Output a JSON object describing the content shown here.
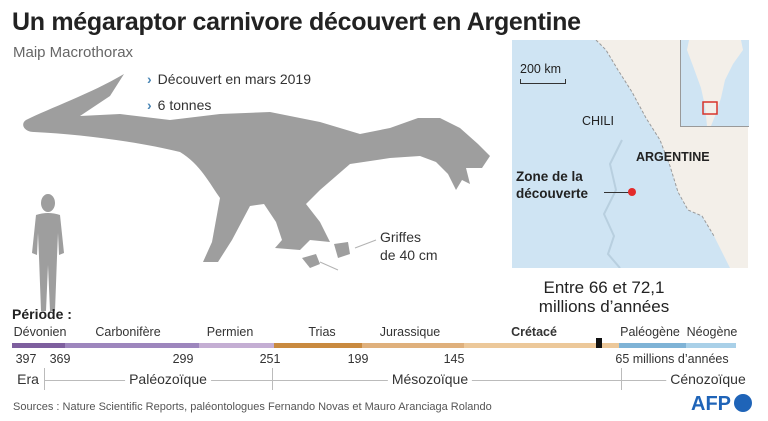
{
  "title": "Un mégaraptor carnivore découvert en Argentine",
  "subtitle": "Maip Macrothorax",
  "facts": [
    "Découvert en mars 2019",
    "6 tonnes"
  ],
  "claw_label": [
    "Griffes",
    "de 40 cm"
  ],
  "timespan": [
    "Entre 66 et 72,1",
    "millions d’années"
  ],
  "map": {
    "scale": "200 km",
    "chile": "CHILI",
    "argentina": "ARGENTINE",
    "zone": [
      "Zone de la",
      "découverte"
    ]
  },
  "timeline": {
    "label": "Période :",
    "periods": [
      "Dévonien",
      "Carbonifère",
      "Permien",
      "Trias",
      "Jurassique",
      "Crétacé",
      "Paléogène",
      "Néogène"
    ],
    "numbers": [
      "397",
      "369",
      "299",
      "251",
      "199",
      "145",
      "65 millions d’années"
    ],
    "eras": [
      "Era",
      "Paléozoïque",
      "Mésozoïque",
      "Cénozoïque"
    ],
    "colors": [
      "#7e5f9e",
      "#9d86bd",
      "#c4aed3",
      "#c98a3f",
      "#dfb07c",
      "#ecc89a",
      "#7fb3d6",
      "#a9d0e8"
    ]
  },
  "sources": "Sources : Nature Scientific Reports, paléontologues Fernando Novas et Mauro Aranciaga Rolando",
  "logo": "AFP",
  "colors": {
    "accent": "#4a86b5",
    "silhouette": "#9e9e9e",
    "water": "#cfe4f3",
    "land": "#f3efe9",
    "marker": "#e32b2b"
  }
}
